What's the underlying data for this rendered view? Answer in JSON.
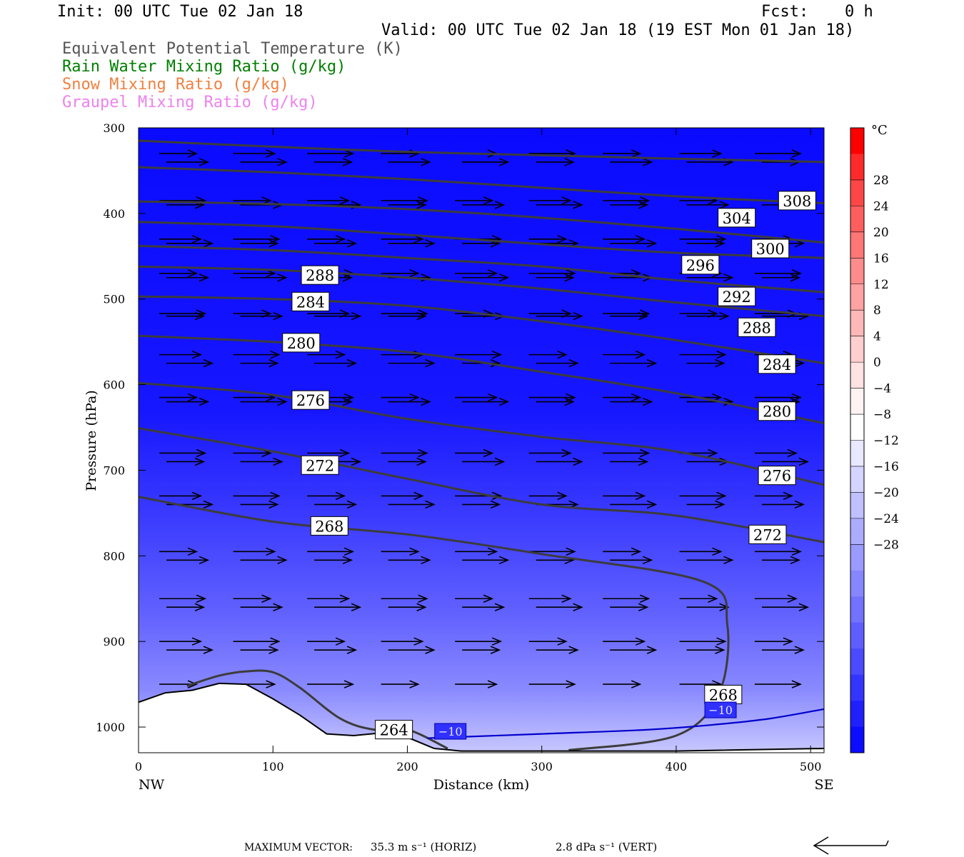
{
  "header": {
    "init": "Init: 00 UTC Tue 02 Jan 18",
    "fcst_label": "Fcst:",
    "fcst_value": "0 h",
    "valid": "Valid: 00 UTC Tue 02 Jan 18 (19 EST Mon 01 Jan 18)",
    "legend": [
      {
        "text": "Equivalent Potential Temperature (K)",
        "color": "#555555"
      },
      {
        "text": "Rain Water Mixing Ratio (g/kg)",
        "color": "#008000"
      },
      {
        "text": "Snow Mixing Ratio (g/kg)",
        "color": "#f08040"
      },
      {
        "text": "Graupel Mixing Ratio (g/kg)",
        "color": "#ee82ee"
      }
    ]
  },
  "chart_data": {
    "type": "cross-section",
    "xlabel": "Distance (km)",
    "ylabel": "Pressure (hPa)",
    "x_ticks": [
      0,
      100,
      200,
      300,
      400,
      500
    ],
    "xlim": [
      0,
      510
    ],
    "y_ticks": [
      300,
      400,
      500,
      600,
      700,
      800,
      900,
      1000
    ],
    "ylim": [
      300,
      1030
    ],
    "left_end": "NW",
    "right_end": "SE",
    "colorbar": {
      "unit": "°C",
      "labels": [
        "28",
        "24",
        "20",
        "16",
        "12",
        "8",
        "4",
        "0",
        "−4",
        "−8",
        "−12",
        "−16",
        "−20",
        "−24",
        "−28"
      ],
      "colors": [
        "#ff0000",
        "#ff2a2a",
        "#ff4646",
        "#ff5e5e",
        "#ff7676",
        "#ff8c8c",
        "#ffa2a2",
        "#ffb8b8",
        "#ffcece",
        "#ffe2e2",
        "#fff2f2",
        "#ffffff",
        "#e8e8ff",
        "#d4d4ff",
        "#c0c0ff",
        "#acacff",
        "#9a9aff",
        "#8686ff",
        "#7272ff",
        "#5e5eff",
        "#4a4aff",
        "#3434ff",
        "#2020ff",
        "#0c0cff"
      ]
    },
    "theta_e_contours": [
      {
        "level": 308,
        "points": [
          [
            0,
            315
          ],
          [
            100,
            322
          ],
          [
            200,
            328
          ],
          [
            300,
            332
          ],
          [
            400,
            336
          ],
          [
            510,
            340
          ]
        ]
      },
      {
        "level": 304,
        "points": [
          [
            0,
            346
          ],
          [
            100,
            352
          ],
          [
            200,
            360
          ],
          [
            300,
            370
          ],
          [
            400,
            380
          ],
          [
            510,
            388
          ]
        ]
      },
      {
        "level": 300,
        "points": [
          [
            0,
            386
          ],
          [
            100,
            389
          ],
          [
            200,
            395
          ],
          [
            300,
            405
          ],
          [
            400,
            418
          ],
          [
            510,
            434
          ]
        ]
      },
      {
        "level": 296,
        "points": [
          [
            0,
            410
          ],
          [
            100,
            415
          ],
          [
            200,
            425
          ],
          [
            300,
            436
          ],
          [
            400,
            446
          ],
          [
            510,
            452
          ]
        ]
      },
      {
        "level": 292,
        "points": [
          [
            0,
            438
          ],
          [
            100,
            443
          ],
          [
            200,
            452
          ],
          [
            300,
            462
          ],
          [
            400,
            478
          ],
          [
            510,
            492
          ]
        ]
      },
      {
        "level": 288,
        "points": [
          [
            0,
            462
          ],
          [
            100,
            466
          ],
          [
            200,
            475
          ],
          [
            300,
            488
          ],
          [
            400,
            504
          ],
          [
            510,
            520
          ]
        ]
      },
      {
        "level": 284,
        "points": [
          [
            0,
            497
          ],
          [
            100,
            500
          ],
          [
            200,
            508
          ],
          [
            300,
            526
          ],
          [
            400,
            548
          ],
          [
            510,
            575
          ]
        ]
      },
      {
        "level": 280,
        "points": [
          [
            0,
            543
          ],
          [
            100,
            550
          ],
          [
            200,
            562
          ],
          [
            300,
            585
          ],
          [
            400,
            610
          ],
          [
            510,
            645
          ]
        ]
      },
      {
        "level": 276,
        "points": [
          [
            0,
            598
          ],
          [
            100,
            612
          ],
          [
            200,
            640
          ],
          [
            300,
            661
          ],
          [
            400,
            678
          ],
          [
            510,
            717
          ]
        ]
      },
      {
        "level": 272,
        "points": [
          [
            0,
            651
          ],
          [
            100,
            678
          ],
          [
            200,
            710
          ],
          [
            300,
            740
          ],
          [
            400,
            753
          ],
          [
            510,
            784
          ]
        ]
      },
      {
        "level": 268,
        "points": [
          [
            0,
            731
          ],
          [
            100,
            760
          ],
          [
            200,
            775
          ],
          [
            300,
            798
          ],
          [
            420,
            830
          ],
          [
            438,
            880
          ],
          [
            432,
            960
          ],
          [
            400,
            1010
          ],
          [
            320,
            1027
          ]
        ]
      },
      {
        "level": 264,
        "points": [
          [
            36,
            952
          ],
          [
            60,
            940
          ],
          [
            80,
            935
          ],
          [
            100,
            936
          ],
          [
            120,
            954
          ],
          [
            150,
            990
          ],
          [
            175,
            1003
          ],
          [
            200,
            1003
          ],
          [
            230,
            1025
          ]
        ]
      }
    ],
    "contour_labels": [
      {
        "text": "308",
        "x": 490,
        "p": 385
      },
      {
        "text": "304",
        "x": 445,
        "p": 405
      },
      {
        "text": "300",
        "x": 470,
        "p": 441
      },
      {
        "text": "296",
        "x": 418,
        "p": 460
      },
      {
        "text": "292",
        "x": 445,
        "p": 497
      },
      {
        "text": "288",
        "x": 135,
        "p": 472
      },
      {
        "text": "288",
        "x": 460,
        "p": 533
      },
      {
        "text": "284",
        "x": 128,
        "p": 503
      },
      {
        "text": "284",
        "x": 475,
        "p": 576
      },
      {
        "text": "280",
        "x": 121,
        "p": 551
      },
      {
        "text": "280",
        "x": 475,
        "p": 631
      },
      {
        "text": "276",
        "x": 128,
        "p": 618
      },
      {
        "text": "276",
        "x": 475,
        "p": 706
      },
      {
        "text": "272",
        "x": 135,
        "p": 694
      },
      {
        "text": "272",
        "x": 468,
        "p": 775
      },
      {
        "text": "268",
        "x": 142,
        "p": 765
      },
      {
        "text": "268",
        "x": 435,
        "p": 962
      },
      {
        "text": "264",
        "x": 190,
        "p": 1003
      }
    ],
    "isotherm": {
      "level": "−10",
      "points": [
        [
          215,
          1013
        ],
        [
          300,
          1008
        ],
        [
          380,
          1003
        ],
        [
          430,
          997
        ],
        [
          470,
          990
        ],
        [
          510,
          979
        ]
      ],
      "labels": [
        {
          "text": "−10",
          "x": 232,
          "p": 1005
        },
        {
          "text": "−10",
          "x": 433,
          "p": 980
        }
      ]
    },
    "terrain": [
      [
        0,
        971
      ],
      [
        20,
        960
      ],
      [
        40,
        957
      ],
      [
        60,
        949
      ],
      [
        80,
        950
      ],
      [
        100,
        967
      ],
      [
        120,
        986
      ],
      [
        140,
        1008
      ],
      [
        160,
        1010
      ],
      [
        180,
        1007
      ],
      [
        200,
        1012
      ],
      [
        220,
        1025
      ],
      [
        240,
        1028
      ],
      [
        300,
        1028
      ],
      [
        400,
        1028
      ],
      [
        510,
        1025
      ]
    ],
    "wind_vector_rows": [
      330,
      340,
      385,
      390,
      430,
      435,
      470,
      475,
      517,
      520,
      565,
      575,
      615,
      620,
      680,
      690,
      730,
      740,
      795,
      805,
      850,
      860,
      900,
      910,
      950
    ],
    "wind_vector_cols": [
      25,
      80,
      135,
      190,
      245,
      300,
      355,
      412,
      468
    ]
  },
  "footer": {
    "max_vector_label": "MAXIMUM VECTOR:",
    "horiz_value": "35.3 m s⁻¹ (HORIZ)",
    "vert_value": "2.8 dPa s⁻¹ (VERT)"
  }
}
